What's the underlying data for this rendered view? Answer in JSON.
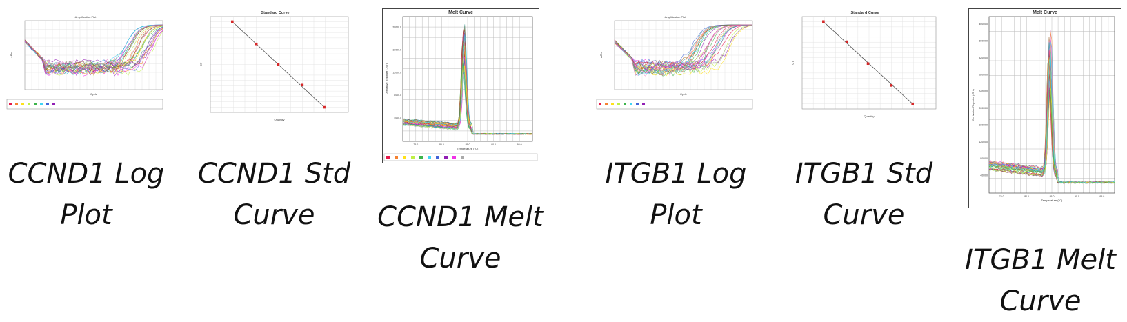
{
  "colors": {
    "series_palette": [
      "#e6194b",
      "#f58231",
      "#ffe119",
      "#bfef45",
      "#3cb44b",
      "#42d4f4",
      "#4363d8",
      "#911eb4",
      "#f032e6",
      "#a9a9a9",
      "#469990",
      "#9A6324",
      "#e377c2",
      "#17becf",
      "#8c564b"
    ],
    "standard_point": "#d62728",
    "standard_line": "#555555",
    "grid": "#e4e4e4",
    "melt_grid": "#bbbbbb"
  },
  "captions": [
    {
      "line1": "CCND1 Log",
      "line2": "Plot"
    },
    {
      "line1": "CCND1 Std",
      "line2": "Curve"
    },
    {
      "line1": "CCND1 Melt",
      "line2": "Curve"
    },
    {
      "line1": "ITGB1 Log",
      "line2": "Plot"
    },
    {
      "line1": "ITGB1 Std",
      "line2": "Curve"
    },
    {
      "line1": "ITGB1 Melt",
      "line2": "Curve"
    }
  ],
  "chart_data": [
    {
      "type": "line",
      "title": "Amplification Plot",
      "xlabel": "Cycle",
      "ylabel": "ΔRn",
      "yscale": "log",
      "legend_placement": "bottom",
      "series_count": 28,
      "ct_range": [
        28,
        38
      ]
    },
    {
      "type": "scatter",
      "title": "Standard Curve",
      "xlabel": "Quantity",
      "ylabel": "CT",
      "xscale": "log",
      "points": [
        [
          0.3,
          34.5
        ],
        [
          1,
          33.2
        ],
        [
          3,
          32.0
        ],
        [
          10,
          30.8
        ],
        [
          30,
          29.5
        ]
      ]
    },
    {
      "type": "line",
      "title": "Melt Curve",
      "xlabel": "Temperature (°C)",
      "ylabel": "Derivative Reporter (-Rn')",
      "x_ticks": [
        "75.0",
        "80.0",
        "85.0",
        "90.0",
        "95.0"
      ],
      "y_ticks": [
        "4000.0",
        "8000.0",
        "12000.0",
        "16000.0",
        "20000.0"
      ],
      "peak_temperature": 84.3,
      "legend_placement": "bottom"
    },
    {
      "type": "line",
      "title": "Amplification Plot",
      "xlabel": "Cycle",
      "ylabel": "ΔRn",
      "yscale": "log",
      "legend_placement": "bottom",
      "series_count": 28,
      "ct_range": [
        22,
        34
      ]
    },
    {
      "type": "scatter",
      "title": "Standard Curve",
      "xlabel": "Quantity",
      "ylabel": "CT",
      "xscale": "log",
      "points": [
        [
          0.3,
          31.8
        ],
        [
          1,
          30.6
        ],
        [
          3,
          29.3
        ],
        [
          10,
          28.0
        ],
        [
          30,
          26.9
        ]
      ]
    },
    {
      "type": "line",
      "title": "Melt Curve",
      "xlabel": "Temperature (°C)",
      "ylabel": "Derivative Reporter (-Rn')",
      "x_ticks": [
        "75.0",
        "80.0",
        "85.0",
        "90.0",
        "95.0"
      ],
      "y_ticks": [
        "4000.0",
        "8000.0",
        "12000.0",
        "16000.0",
        "20000.0",
        "24000.0",
        "28000.0",
        "32000.0",
        "36000.0",
        "40000.0"
      ],
      "peak_temperature": 84.6
    }
  ]
}
